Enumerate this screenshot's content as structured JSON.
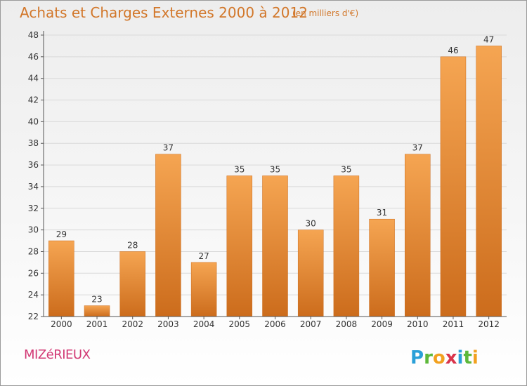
{
  "header": {
    "title": "Achats et Charges Externes 2000 à 2012",
    "unit_note": "(en milliers d'€)"
  },
  "footer": {
    "commune": "MIZéRIEUX",
    "logo": {
      "name": "proxiti-logo",
      "letters": [
        "P",
        "r",
        "o",
        "x",
        "i",
        "t",
        "i"
      ],
      "colors": [
        "#2aa0d8",
        "#5db83a",
        "#f2a11f",
        "#d9344b",
        "#2aa0d8",
        "#5db83a",
        "#f2a11f"
      ]
    }
  },
  "chart_data": {
    "type": "bar",
    "title": "Achats et Charges Externes 2000 à 2012",
    "subtitle": "(en milliers d'€)",
    "categories": [
      "2000",
      "2001",
      "2002",
      "2003",
      "2004",
      "2005",
      "2006",
      "2007",
      "2008",
      "2009",
      "2010",
      "2011",
      "2012"
    ],
    "values": [
      29,
      23,
      28,
      37,
      27,
      35,
      35,
      30,
      35,
      31,
      37,
      46,
      47
    ],
    "ylim": [
      22,
      48
    ],
    "yticks": [
      22,
      24,
      26,
      28,
      30,
      32,
      34,
      36,
      38,
      40,
      42,
      44,
      46,
      48
    ],
    "grid": true,
    "bar_color": "#ee8a2e",
    "bar_color_light": "#f5a552",
    "bar_color_dark": "#cc6c1c",
    "grid_color": "#d9d9d9"
  }
}
